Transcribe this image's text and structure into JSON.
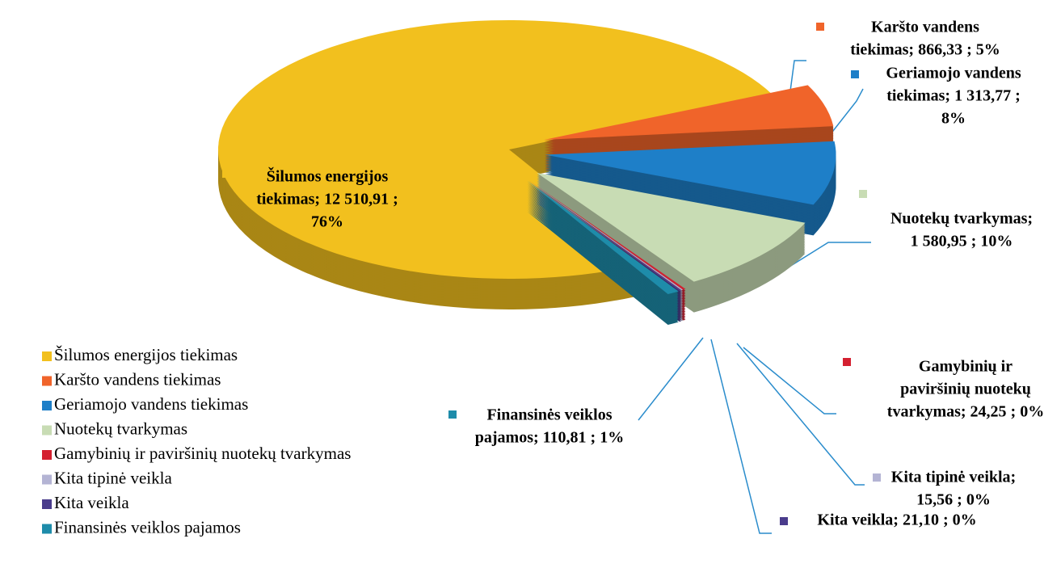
{
  "chart_data": {
    "type": "pie",
    "categories": [
      "Šilumos energijos tiekimas",
      "Karšto vandens tiekimas",
      "Geriamojo vandens tiekimas",
      "Nuotekų tvarkymas",
      "Gamybinių ir paviršinių nuotekų tvarkymas",
      "Kita tipinė veikla",
      "Kita veikla",
      "Finansinės veiklos pajamos"
    ],
    "values": [
      12510.91,
      866.33,
      1313.77,
      1580.95,
      24.25,
      15.56,
      21.1,
      110.81
    ],
    "value_labels": [
      "12 510,91",
      "866,33",
      "1 313,77",
      "1 580,95",
      "24,25",
      "15,56",
      "21,10",
      "110,81"
    ],
    "percents": [
      76,
      5,
      8,
      10,
      0,
      0,
      0,
      1
    ],
    "percent_labels": [
      "76%",
      "5%",
      "8%",
      "10%",
      "0%",
      "0%",
      "0%",
      "1%"
    ],
    "data_labels": [
      [
        "Šilumos energijos",
        "tiekimas;  12 510,91 ;",
        "76%"
      ],
      [
        "Karšto vandens",
        "tiekimas;  866,33 ; 5%"
      ],
      [
        "Geriamojo vandens",
        "tiekimas;  1 313,77 ;",
        "8%"
      ],
      [
        "Nuotekų tvarkymas;",
        "1 580,95 ; 10%"
      ],
      [
        "Gamybinių ir",
        "paviršinių nuotekų",
        "tvarkymas;  24,25 ; 0%"
      ],
      [
        "Kita tipinė veikla;",
        "15,56 ; 0%"
      ],
      [
        "Kita veikla;  21,10 ; 0%"
      ],
      [
        "Finansinės veiklos",
        "pajamos;  110,81 ; 1%"
      ]
    ],
    "colors": [
      "#f2c01e",
      "#f0642a",
      "#1e7fc8",
      "#c8dcb4",
      "#d42030",
      "#b4b4d4",
      "#4a3c8c",
      "#1e8caa"
    ],
    "legend": "bottom-left"
  }
}
